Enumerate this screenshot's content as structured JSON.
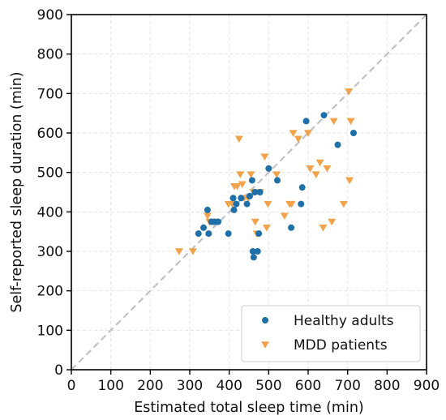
{
  "chart_data": {
    "type": "scatter",
    "xlabel": "Estimated total sleep time (min)",
    "ylabel": "Self-reported sleep duration (min)",
    "xlim": [
      0,
      900
    ],
    "ylim": [
      0,
      900
    ],
    "xticks": [
      "0",
      "100",
      "200",
      "300",
      "400",
      "500",
      "600",
      "700",
      "800",
      "900"
    ],
    "yticks": [
      "0",
      "100",
      "200",
      "300",
      "400",
      "500",
      "600",
      "700",
      "800",
      "900"
    ],
    "grid": true,
    "identity_line": true,
    "legend_position": "bottom-right",
    "series": [
      {
        "name": "Healthy adults",
        "marker": "circle",
        "color": "#1f6fa8",
        "points": [
          [
            322,
            345
          ],
          [
            335,
            360
          ],
          [
            345,
            405
          ],
          [
            348,
            345
          ],
          [
            355,
            375
          ],
          [
            363,
            375
          ],
          [
            372,
            375
          ],
          [
            398,
            345
          ],
          [
            410,
            435
          ],
          [
            412,
            405
          ],
          [
            418,
            420
          ],
          [
            430,
            435
          ],
          [
            445,
            420
          ],
          [
            452,
            440
          ],
          [
            458,
            480
          ],
          [
            460,
            300
          ],
          [
            462,
            285
          ],
          [
            465,
            450
          ],
          [
            472,
            300
          ],
          [
            475,
            345
          ],
          [
            478,
            450
          ],
          [
            500,
            510
          ],
          [
            522,
            480
          ],
          [
            557,
            360
          ],
          [
            582,
            420
          ],
          [
            585,
            462
          ],
          [
            595,
            630
          ],
          [
            640,
            645
          ],
          [
            675,
            570
          ],
          [
            715,
            600
          ]
        ]
      },
      {
        "name": "MDD patients",
        "marker": "triangle-down",
        "color": "#f2a24a",
        "points": [
          [
            273,
            300
          ],
          [
            308,
            300
          ],
          [
            345,
            390
          ],
          [
            350,
            375
          ],
          [
            360,
            375
          ],
          [
            398,
            420
          ],
          [
            408,
            420
          ],
          [
            413,
            465
          ],
          [
            420,
            465
          ],
          [
            425,
            585
          ],
          [
            428,
            495
          ],
          [
            433,
            470
          ],
          [
            438,
            435
          ],
          [
            448,
            435
          ],
          [
            455,
            495
          ],
          [
            462,
            450
          ],
          [
            466,
            375
          ],
          [
            470,
            345
          ],
          [
            478,
            450
          ],
          [
            490,
            540
          ],
          [
            495,
            360
          ],
          [
            498,
            420
          ],
          [
            520,
            495
          ],
          [
            540,
            390
          ],
          [
            553,
            420
          ],
          [
            558,
            420
          ],
          [
            562,
            600
          ],
          [
            575,
            585
          ],
          [
            600,
            600
          ],
          [
            605,
            510
          ],
          [
            620,
            495
          ],
          [
            630,
            525
          ],
          [
            638,
            360
          ],
          [
            648,
            510
          ],
          [
            660,
            375
          ],
          [
            665,
            630
          ],
          [
            690,
            420
          ],
          [
            703,
            705
          ],
          [
            705,
            480
          ],
          [
            708,
            630
          ]
        ]
      }
    ]
  }
}
